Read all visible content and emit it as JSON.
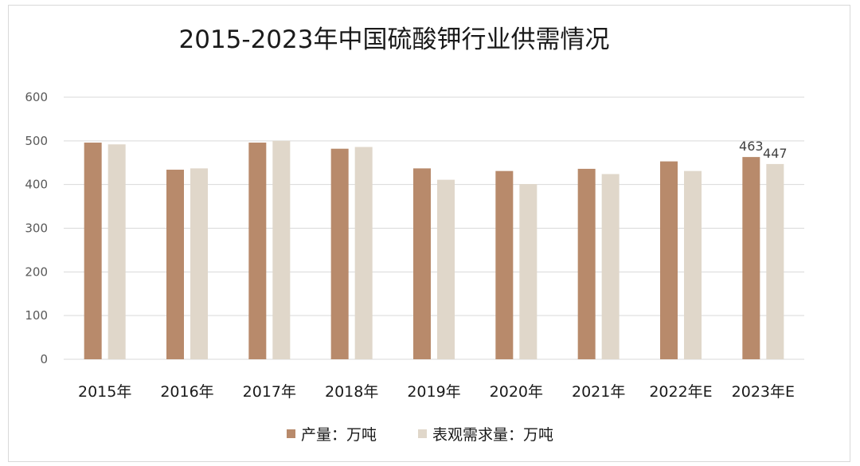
{
  "chart_data": {
    "type": "bar",
    "title": "2015-2023年中国硫酸钾行业供需情况",
    "categories": [
      "2015年",
      "2016年",
      "2017年",
      "2018年",
      "2019年",
      "2020年",
      "2021年",
      "2022年E",
      "2023年E"
    ],
    "series": [
      {
        "name": "产量：万吨",
        "color": "#b88a6b",
        "values": [
          496,
          434,
          496,
          482,
          437,
          431,
          436,
          453,
          463
        ]
      },
      {
        "name": "表观需求量：万吨",
        "color": "#e0d7ca",
        "values": [
          492,
          437,
          500,
          486,
          411,
          401,
          424,
          431,
          447
        ]
      }
    ],
    "data_labels": [
      {
        "category_index": 8,
        "series_index": 0,
        "text": "463"
      },
      {
        "category_index": 8,
        "series_index": 1,
        "text": "447"
      }
    ],
    "yticks": [
      "0",
      "100",
      "200",
      "300",
      "400",
      "500",
      "600"
    ],
    "ylim": [
      0,
      600
    ],
    "grid": true,
    "legend": "bottom-center"
  }
}
